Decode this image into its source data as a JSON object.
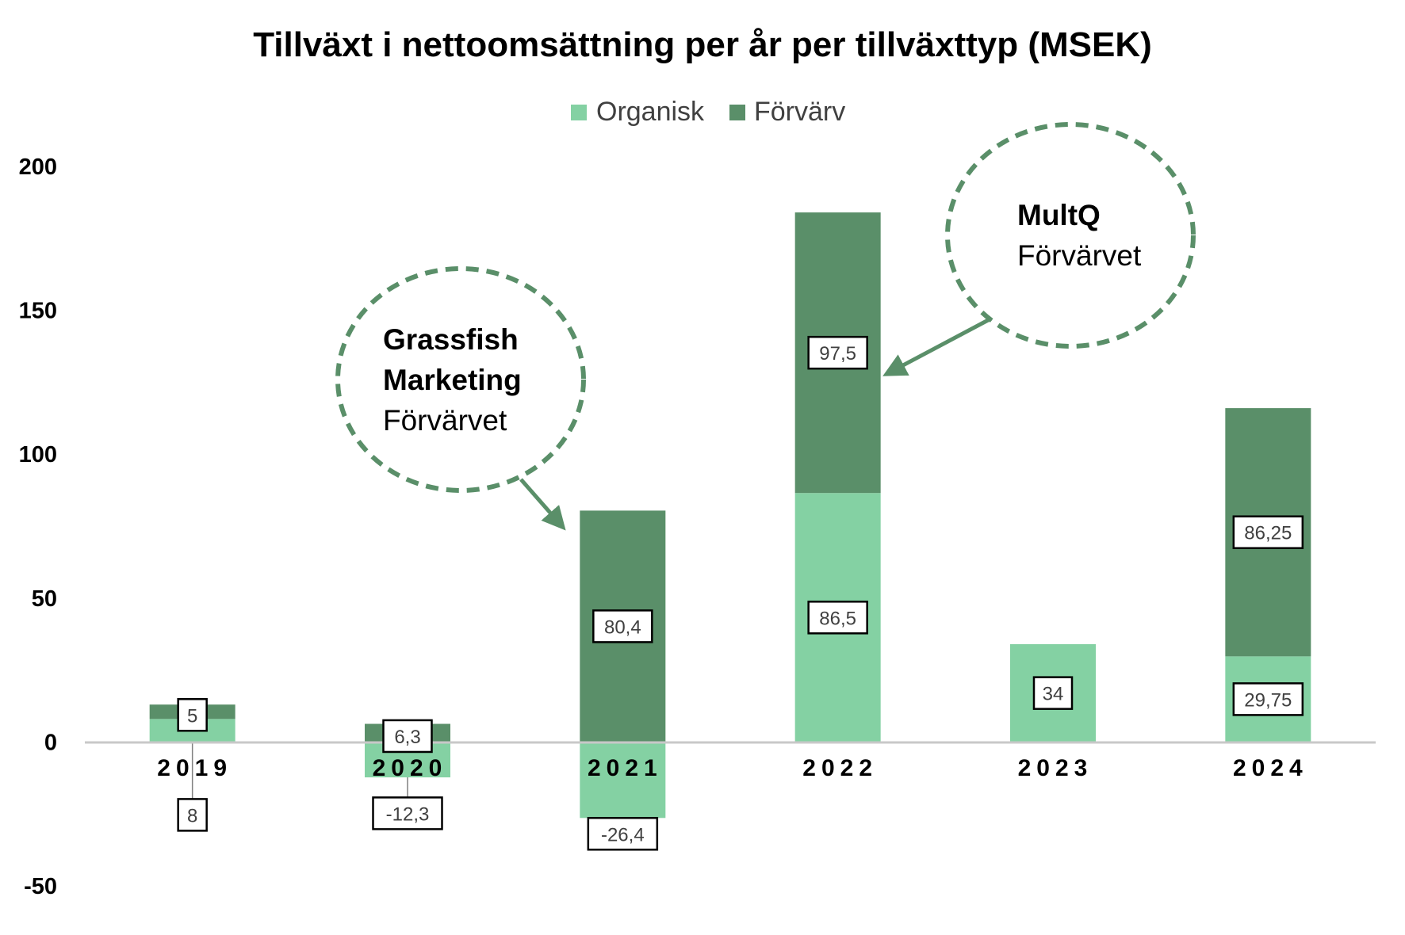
{
  "chart_data": {
    "type": "bar",
    "stacked": true,
    "title": "Tillväxt i nettoomsättning per år per tillväxttyp (MSEK)",
    "xlabel": "",
    "ylabel": "",
    "categories": [
      "2019",
      "2020",
      "2021",
      "2022",
      "2023",
      "2024"
    ],
    "series": [
      {
        "name": "Organisk",
        "color": "#84D1A3",
        "values": [
          8,
          -12.3,
          -26.4,
          86.5,
          34,
          29.75
        ]
      },
      {
        "name": "Förvärv",
        "color": "#5A8F69",
        "values": [
          5,
          6.3,
          80.4,
          97.5,
          null,
          86.25
        ]
      }
    ],
    "data_labels": {
      "Organisk": [
        "8",
        "-12,3",
        "-26,4",
        "86,5",
        "34",
        "29,75"
      ],
      "Förvärv": [
        "5",
        "6,3",
        "80,4",
        "97,5",
        "",
        "86,25"
      ]
    },
    "ylim": [
      -50,
      200
    ],
    "yticks": [
      -50,
      0,
      50,
      100,
      150,
      200
    ],
    "ytick_labels": [
      "-50",
      "0",
      "50",
      "100",
      "150",
      "200"
    ],
    "grid": false,
    "legend_position": "top-center",
    "annotations": [
      {
        "target_category": "2021",
        "bold_lines": [
          "Grassfish",
          "Marketing"
        ],
        "normal_lines": [
          "Förvärvet"
        ]
      },
      {
        "target_category": "2022",
        "bold_lines": [
          "MultQ"
        ],
        "normal_lines": [
          "Förvärvet"
        ]
      }
    ]
  }
}
